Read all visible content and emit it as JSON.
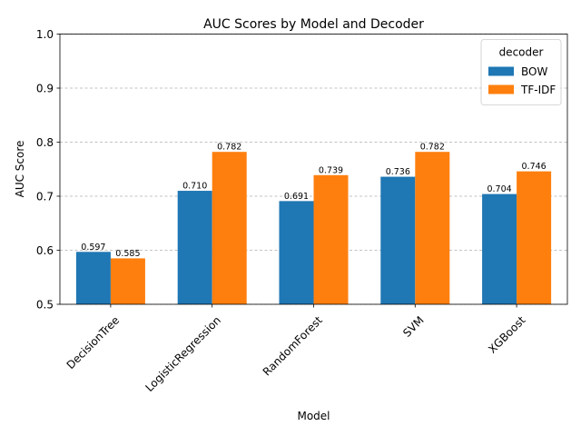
{
  "chart_data": {
    "type": "bar",
    "title": "AUC Scores by Model and Decoder",
    "xlabel": "Model",
    "ylabel": "AUC Score",
    "ylim": [
      0.5,
      1.0
    ],
    "yticks": [
      "0.5",
      "0.6",
      "0.7",
      "0.8",
      "0.9",
      "1.0"
    ],
    "grid": "y-dashed",
    "categories": [
      "DecisionTree",
      "LogisticRegression",
      "RandomForest",
      "SVM",
      "XGBoost"
    ],
    "series": [
      {
        "name": "BOW",
        "color": "#1f77b4",
        "values": [
          0.597,
          0.71,
          0.691,
          0.736,
          0.704
        ]
      },
      {
        "name": "TF-IDF",
        "color": "#ff7f0e",
        "values": [
          0.585,
          0.782,
          0.739,
          0.782,
          0.746
        ]
      }
    ],
    "legend": {
      "title": "decoder",
      "placement": "top-right"
    }
  }
}
